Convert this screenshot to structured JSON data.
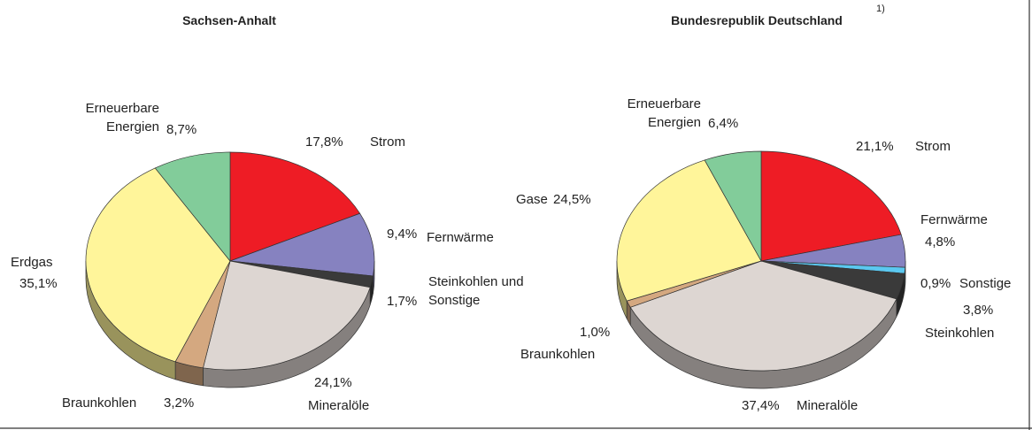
{
  "chart_data": [
    {
      "type": "pie",
      "title": "Sachsen-Anhalt",
      "categories": [
        "Strom",
        "Fernwärme",
        "Steinkohlen und Sonstige",
        "Mineralöle",
        "Braunkohlen",
        "Erdgas",
        "Erneuerbare Energien"
      ],
      "values": [
        17.8,
        9.4,
        1.7,
        24.1,
        3.2,
        35.1,
        8.7
      ],
      "value_labels": [
        "17,8%",
        "9,4%",
        "1,7%",
        "24,1%",
        "3,2%",
        "35,1%",
        "8,7%"
      ],
      "colors": [
        "#ee1c25",
        "#8682c0",
        "#3a3a3a",
        "#ddd6d2",
        "#d4a880",
        "#fff59a",
        "#82cc9a"
      ]
    },
    {
      "type": "pie",
      "title": "Bundesrepublik Deutschland",
      "title_note": "1)",
      "categories": [
        "Strom",
        "Fernwärme",
        "Sonstige",
        "Steinkohlen",
        "Mineralöle",
        "Braunkohlen",
        "Gase",
        "Erneuerbare Energien"
      ],
      "values": [
        21.1,
        4.8,
        0.9,
        3.8,
        37.4,
        1.0,
        24.5,
        6.4
      ],
      "value_labels": [
        "21,1%",
        "4,8%",
        "0,9%",
        "3,8%",
        "37,4%",
        "1,0%",
        "24,5%",
        "6,4%"
      ],
      "colors": [
        "#ee1c25",
        "#8682c0",
        "#5bc8f0",
        "#3a3a3a",
        "#ddd6d2",
        "#d4a880",
        "#fff59a",
        "#82cc9a"
      ]
    }
  ]
}
